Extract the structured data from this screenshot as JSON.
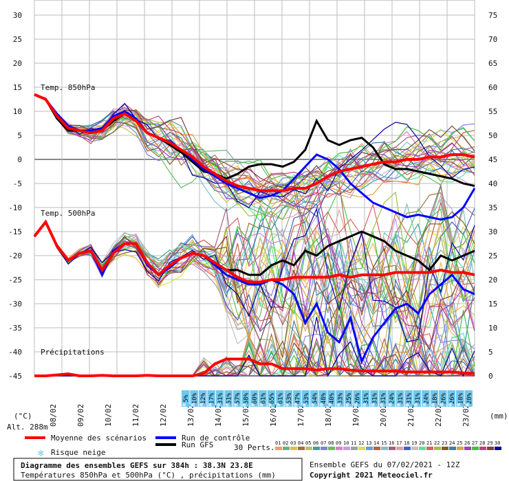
{
  "chart_data": {
    "type": "line",
    "title": "Diagramme des ensembles GEFS sur 384h : 38.3N 23.8E",
    "subtitle": "Températures 850hPa et 500hPa (°C) , précipitations (mm)",
    "left_axis_unit": "(°C)",
    "right_axis_unit": "(mm)",
    "altitude": "Alt. 288m",
    "ylim_left": [
      -45,
      30
    ],
    "ylim_right": [
      0,
      75
    ],
    "left_ticks": [
      "30",
      "25",
      "20",
      "15",
      "10",
      "5",
      "0",
      "-5",
      "-10",
      "-15",
      "-20",
      "-25",
      "-30",
      "-35",
      "-40",
      "-45"
    ],
    "right_ticks": [
      "75",
      "70",
      "65",
      "60",
      "55",
      "50",
      "45",
      "40",
      "35",
      "30",
      "25",
      "20",
      "15",
      "10",
      "5",
      "0"
    ],
    "x_labels": [
      "08/02",
      "09/02",
      "10/02",
      "11/02",
      "12/02",
      "13/02",
      "14/02",
      "15/02",
      "16/02",
      "17/02",
      "18/02",
      "19/02",
      "20/02",
      "21/02",
      "22/02",
      "23/02"
    ],
    "panel_labels": {
      "t850": "Temp. 850hPa",
      "t500": "Temp. 500hPa",
      "precip": "Précipitations"
    },
    "snow_risk_percent": [
      "5%",
      "10%",
      "12%",
      "17%",
      "31%",
      "51%",
      "57%",
      "58%",
      "60%",
      "61%",
      "65%",
      "61%",
      "53%",
      "47%",
      "53%",
      "54%",
      "48%",
      "40%",
      "33%",
      "25%",
      "26%",
      "31%",
      "31%",
      "31%",
      "24%",
      "31%",
      "31%",
      "31%",
      "24%",
      "18%",
      "26%",
      "26%",
      "18%",
      "20%"
    ],
    "t850": {
      "mean": [
        13.5,
        12.5,
        9,
        6.5,
        6,
        5.5,
        6,
        8.5,
        9.5,
        8,
        5.5,
        4.5,
        3.5,
        2,
        0.5,
        -1.5,
        -3,
        -4.5,
        -5.5,
        -6,
        -6.5,
        -6.5,
        -6.5,
        -6,
        -6,
        -5,
        -3.5,
        -2.5,
        -2,
        -1.5,
        -1,
        -0.5,
        -0.5,
        0,
        0,
        0.5,
        0.5,
        1,
        1,
        0.5
      ],
      "control": [
        13.5,
        12.5,
        9.5,
        7,
        6,
        6,
        6.5,
        9,
        10,
        8.5,
        5.5,
        4.5,
        3.5,
        2,
        0,
        -2,
        -3.5,
        -5,
        -6,
        -7,
        -8,
        -7.5,
        -6.5,
        -4,
        -1.5,
        1,
        0,
        -2,
        -5,
        -7,
        -9,
        -10,
        -11,
        -12,
        -11.5,
        -12,
        -12.5,
        -12,
        -10,
        -6
      ],
      "gfs": [
        13.5,
        12.5,
        8.5,
        6,
        6,
        5.5,
        6,
        8,
        9.5,
        8,
        5.5,
        4.5,
        3,
        1.5,
        -0.5,
        -2.5,
        -3,
        -4,
        -3,
        -1.5,
        -1,
        -1,
        -1.5,
        -0.5,
        2,
        8,
        4,
        3,
        4,
        4.5,
        2.5,
        -1,
        -2,
        -2,
        -2.5,
        -3,
        -3.5,
        -4,
        -5,
        -5.5
      ]
    },
    "t500": {
      "mean": [
        -16,
        -13,
        -18,
        -21,
        -19.5,
        -19,
        -23,
        -19.5,
        -17.5,
        -17.5,
        -21.5,
        -24,
        -22,
        -20.5,
        -19.5,
        -20,
        -21.5,
        -23,
        -24.5,
        -25.5,
        -25.5,
        -25,
        -25,
        -24.5,
        -24.5,
        -24.5,
        -24.5,
        -24,
        -24.5,
        -24,
        -24,
        -24,
        -23.5,
        -23.5,
        -23.5,
        -23.5,
        -23,
        -23.5,
        -23.5,
        -24
      ],
      "control": [
        -16,
        -13,
        -18,
        -21,
        -19.5,
        -19,
        -24,
        -19,
        -17.5,
        -17.5,
        -22,
        -24,
        -22.5,
        -20.5,
        -19.5,
        -20,
        -22,
        -24,
        -25,
        -26,
        -26,
        -25,
        -26,
        -28,
        -34,
        -30,
        -36,
        -38,
        -33,
        -42,
        -37,
        -34,
        -31,
        -30,
        -32,
        -28,
        -26,
        -24,
        -27,
        -28
      ],
      "gfs": [
        -16,
        -13,
        -18,
        -21,
        -19.5,
        -19,
        -23,
        -19.5,
        -17.5,
        -17.5,
        -21.5,
        -24,
        -22,
        -20.5,
        -19.5,
        -20,
        -22,
        -23,
        -23,
        -24,
        -24,
        -22,
        -21,
        -22,
        -19,
        -20,
        -18,
        -17,
        -16,
        -15,
        -16,
        -17,
        -19,
        -20,
        -21,
        -23,
        -20,
        -21,
        -20,
        -19
      ]
    },
    "precip_mm": {
      "mean": [
        0,
        0,
        0.2,
        0.4,
        0,
        0,
        0.1,
        0,
        0,
        0,
        0.1,
        0,
        0,
        0,
        0,
        0.5,
        2.5,
        3.5,
        3.5,
        3.5,
        2.5,
        2.5,
        1.5,
        1.5,
        1.5,
        1.2,
        1.5,
        1.5,
        1.2,
        1,
        1,
        1,
        1,
        0.8,
        0.8,
        0.8,
        0.8,
        0.8,
        0.6,
        0.5
      ]
    },
    "legend": {
      "mean": "Moyenne des scénarios",
      "control": "Run de contrôle",
      "gfs": "Run GFS",
      "snow": "Risque neige",
      "perts_label": "30 Perts.",
      "perts": [
        "01",
        "02",
        "03",
        "04",
        "05",
        "06",
        "07",
        "08",
        "09",
        "10",
        "11",
        "12",
        "13",
        "14",
        "15",
        "16",
        "17",
        "18",
        "19",
        "20",
        "21",
        "22",
        "23",
        "24",
        "25",
        "26",
        "27",
        "28",
        "29",
        "30"
      ],
      "pert_colors": [
        "#e8a070",
        "#70b080",
        "#e0c040",
        "#a07040",
        "#c0c060",
        "#40a0a0",
        "#8080e0",
        "#60c060",
        "#e080c0",
        "#c0a0e0",
        "#a0a0a0",
        "#e0e040",
        "#60a0e0",
        "#c06040",
        "#80c0c0",
        "#a06080",
        "#e0a0a0",
        "#4060c0",
        "#c0c0c0",
        "#60e0a0",
        "#e06060",
        "#a0c040",
        "#806020",
        "#4080a0",
        "#e0a040",
        "#a040c0",
        "#40c040",
        "#c04080",
        "#804040",
        "#0000a0"
      ]
    },
    "colors": {
      "mean": "#ff0000",
      "control": "#0000ff",
      "gfs": "#000000",
      "grid": "#bbbbbb",
      "snow": "#6fc8ee"
    },
    "run_info": "Ensemble GEFS du 07/02/2021 - 12Z",
    "copyright": "Copyright 2021 Meteociel.fr"
  }
}
